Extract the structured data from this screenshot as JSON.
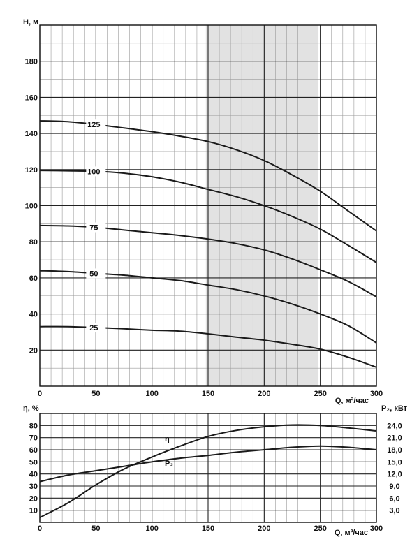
{
  "chart_data": [
    {
      "type": "line",
      "ylabel": "H, м",
      "xlabel": "Q, м³/час",
      "xlim": [
        0,
        300
      ],
      "ylim": [
        0,
        200
      ],
      "xticks": [
        0,
        50,
        100,
        150,
        200,
        250,
        300
      ],
      "yticks": [
        20,
        40,
        60,
        80,
        100,
        120,
        140,
        160,
        180
      ],
      "grid": true,
      "shaded_band": {
        "x": [
          148,
          248
        ]
      },
      "series": [
        {
          "name": "125",
          "x": [
            0,
            25,
            50,
            75,
            100,
            125,
            150,
            175,
            200,
            225,
            250,
            275,
            300
          ],
          "y": [
            147,
            146.5,
            145,
            143,
            141,
            138.5,
            135.5,
            131,
            125,
            117,
            108,
            97,
            86
          ]
        },
        {
          "name": "100",
          "x": [
            0,
            25,
            50,
            75,
            100,
            125,
            150,
            175,
            200,
            225,
            250,
            275,
            300
          ],
          "y": [
            119.5,
            119.3,
            119,
            118,
            116,
            113,
            109,
            105,
            100,
            94,
            87,
            78,
            68.5
          ]
        },
        {
          "name": "75",
          "x": [
            0,
            25,
            50,
            75,
            100,
            125,
            150,
            175,
            200,
            225,
            250,
            275,
            300
          ],
          "y": [
            89,
            88.8,
            88,
            86.5,
            85,
            83.5,
            81.5,
            79,
            75.5,
            70.5,
            64.5,
            58,
            49.5
          ]
        },
        {
          "name": "50",
          "x": [
            0,
            25,
            50,
            75,
            100,
            125,
            150,
            175,
            200,
            225,
            250,
            275,
            300
          ],
          "y": [
            64,
            63.5,
            62.5,
            61.5,
            60,
            58.5,
            56,
            53.5,
            50,
            45.5,
            40,
            33.5,
            24
          ]
        },
        {
          "name": "25",
          "x": [
            0,
            25,
            50,
            75,
            100,
            125,
            150,
            175,
            200,
            225,
            250,
            275,
            300
          ],
          "y": [
            33,
            33,
            32.5,
            31.8,
            31,
            30.5,
            29,
            27.2,
            25.5,
            23.2,
            20.5,
            16,
            10.5
          ]
        }
      ]
    },
    {
      "type": "line",
      "ylabel": "η, %",
      "y2label": "P₂, кВт",
      "xlabel": "Q, м³/час",
      "xlim": [
        0,
        300
      ],
      "ylim": [
        0,
        90
      ],
      "y2lim": [
        0,
        27
      ],
      "xticks": [
        0,
        50,
        100,
        150,
        200,
        250,
        300
      ],
      "yticks": [
        10,
        20,
        30,
        40,
        50,
        60,
        70,
        80
      ],
      "y2ticks": [
        "3,0",
        "6,0",
        "9,0",
        "12,0",
        "15,0",
        "18,0",
        "21,0",
        "24,0"
      ],
      "grid": true,
      "series": [
        {
          "name": "η",
          "axis": "left",
          "x": [
            0,
            25,
            50,
            75,
            100,
            125,
            150,
            175,
            200,
            225,
            250,
            275,
            300
          ],
          "y": [
            4,
            16,
            31,
            44,
            54,
            63,
            71,
            76,
            79,
            80.5,
            80,
            78,
            75.5
          ]
        },
        {
          "name": "P₂",
          "axis": "right",
          "x": [
            0,
            25,
            50,
            75,
            100,
            125,
            150,
            175,
            200,
            225,
            250,
            275,
            300
          ],
          "y": [
            10.1,
            11.7,
            12.8,
            13.9,
            15.0,
            15.9,
            16.6,
            17.4,
            18.0,
            18.6,
            18.9,
            18.6,
            18.0
          ]
        }
      ]
    }
  ]
}
